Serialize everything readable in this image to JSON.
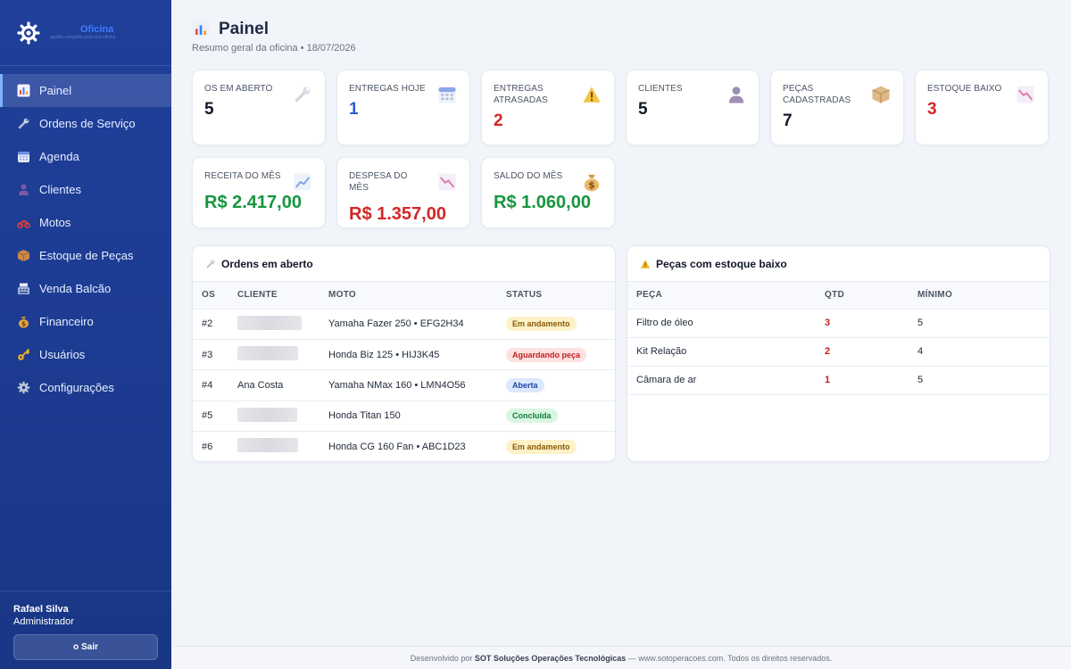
{
  "brand": {
    "name": "Oficina",
    "tagline": "gestão completa para sua oficina"
  },
  "nav": [
    {
      "label": "Painel",
      "icon": "bar-chart-icon",
      "active": true
    },
    {
      "label": "Ordens de Serviço",
      "icon": "wrench-icon"
    },
    {
      "label": "Agenda",
      "icon": "calendar-icon"
    },
    {
      "label": "Clientes",
      "icon": "person-icon"
    },
    {
      "label": "Motos",
      "icon": "motorcycle-icon"
    },
    {
      "label": "Estoque de Peças",
      "icon": "box-icon"
    },
    {
      "label": "Venda Balcão",
      "icon": "cash-register-icon"
    },
    {
      "label": "Financeiro",
      "icon": "money-bag-icon"
    },
    {
      "label": "Usuários",
      "icon": "key-icon"
    },
    {
      "label": "Configurações",
      "icon": "gear-icon"
    }
  ],
  "user": {
    "name": "Rafael Silva",
    "role": "Administrador",
    "logout_label": "Sair"
  },
  "header": {
    "title": "Painel",
    "subtitle": "Resumo geral da oficina • 18/07/2026"
  },
  "stats": [
    {
      "label": "OS EM ABERTO",
      "value": "5",
      "icon": "wrench-icon"
    },
    {
      "label": "ENTREGAS HOJE",
      "value": "1",
      "icon": "calendar-icon"
    },
    {
      "label": "ENTREGAS ATRASADAS",
      "value": "2",
      "icon": "warning-icon"
    },
    {
      "label": "CLIENTES",
      "value": "5",
      "icon": "person-icon"
    },
    {
      "label": "PEÇAS CADASTRADAS",
      "value": "7",
      "icon": "box-icon"
    },
    {
      "label": "ESTOQUE BAIXO",
      "value": "3",
      "icon": "trend-down-icon"
    }
  ],
  "money": [
    {
      "label": "RECEITA DO MÊS",
      "value": "R$ 2.417,00",
      "icon": "trend-up-icon"
    },
    {
      "label": "DESPESA DO MÊS",
      "value": "R$ 1.357,00",
      "icon": "trend-down-icon"
    },
    {
      "label": "SALDO DO MÊS",
      "value": "R$ 1.060,00",
      "icon": "money-bag-icon"
    }
  ],
  "orders": {
    "title": "Ordens em aberto",
    "columns": [
      "OS",
      "CLIENTE",
      "MOTO",
      "STATUS"
    ],
    "rows": [
      {
        "os": "#2",
        "client": "",
        "moto": "Yamaha Fazer 250 • EFG2H34",
        "status": "Em andamento"
      },
      {
        "os": "#3",
        "client": "",
        "moto": "Honda Biz 125 • HIJ3K45",
        "status": "Aguardando peça"
      },
      {
        "os": "#4",
        "client": "Ana Costa",
        "moto": "Yamaha NMax 160 • LMN4O56",
        "status": "Aberta"
      },
      {
        "os": "#5",
        "client": "",
        "moto": "Honda Titan 150",
        "status": "Concluída"
      },
      {
        "os": "#6",
        "client": "",
        "moto": "Honda CG 160 Fan • ABC1D23",
        "status": "Em andamento"
      }
    ]
  },
  "stock": {
    "title": "Peças com estoque baixo",
    "columns": [
      "PEÇA",
      "QTD",
      "MÍNIMO"
    ],
    "rows": [
      {
        "part": "Filtro de óleo",
        "qty": "3",
        "min": "5"
      },
      {
        "part": "Kit Relação",
        "qty": "2",
        "min": "4"
      },
      {
        "part": "Câmara de ar",
        "qty": "1",
        "min": "5"
      }
    ]
  },
  "footer": {
    "prefix": "Desenvolvido por",
    "company": "SOT Soluções Operações Tecnológicas",
    "suffix": "— www.sotoperacoes.com. Todos os direitos reservados."
  }
}
